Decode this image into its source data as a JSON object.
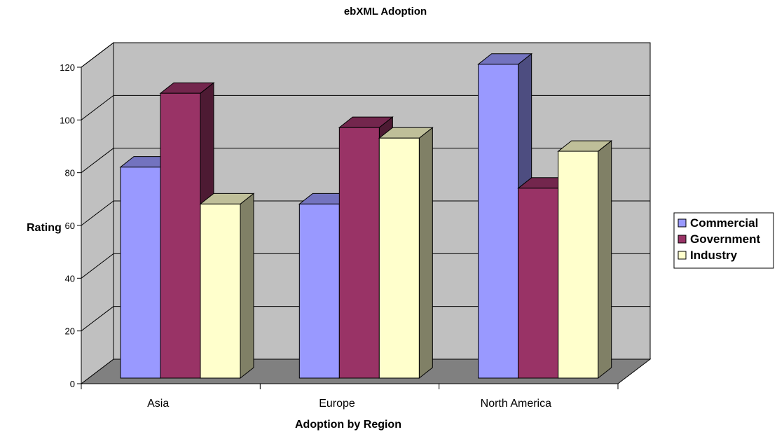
{
  "chart_data": {
    "type": "bar",
    "title": "ebXML Adoption",
    "xlabel": "Adoption by Region",
    "ylabel": "Rating",
    "categories": [
      "Asia",
      "Europe",
      "North America"
    ],
    "series": [
      {
        "name": "Commercial",
        "values": [
          80,
          66,
          119
        ],
        "color": "#9999ff"
      },
      {
        "name": "Government",
        "values": [
          108,
          95,
          72
        ],
        "color": "#993366"
      },
      {
        "name": "Industry",
        "values": [
          66,
          91,
          86
        ],
        "color": "#ffffcc"
      }
    ],
    "ylim": [
      0,
      120
    ],
    "yticks": [
      "0",
      "20",
      "40",
      "60",
      "80",
      "100",
      "120"
    ],
    "grid": true,
    "legend_position": "right",
    "background": {
      "plot_wall": "#c0c0c0",
      "floor": "#808080",
      "border": "#000000"
    }
  }
}
